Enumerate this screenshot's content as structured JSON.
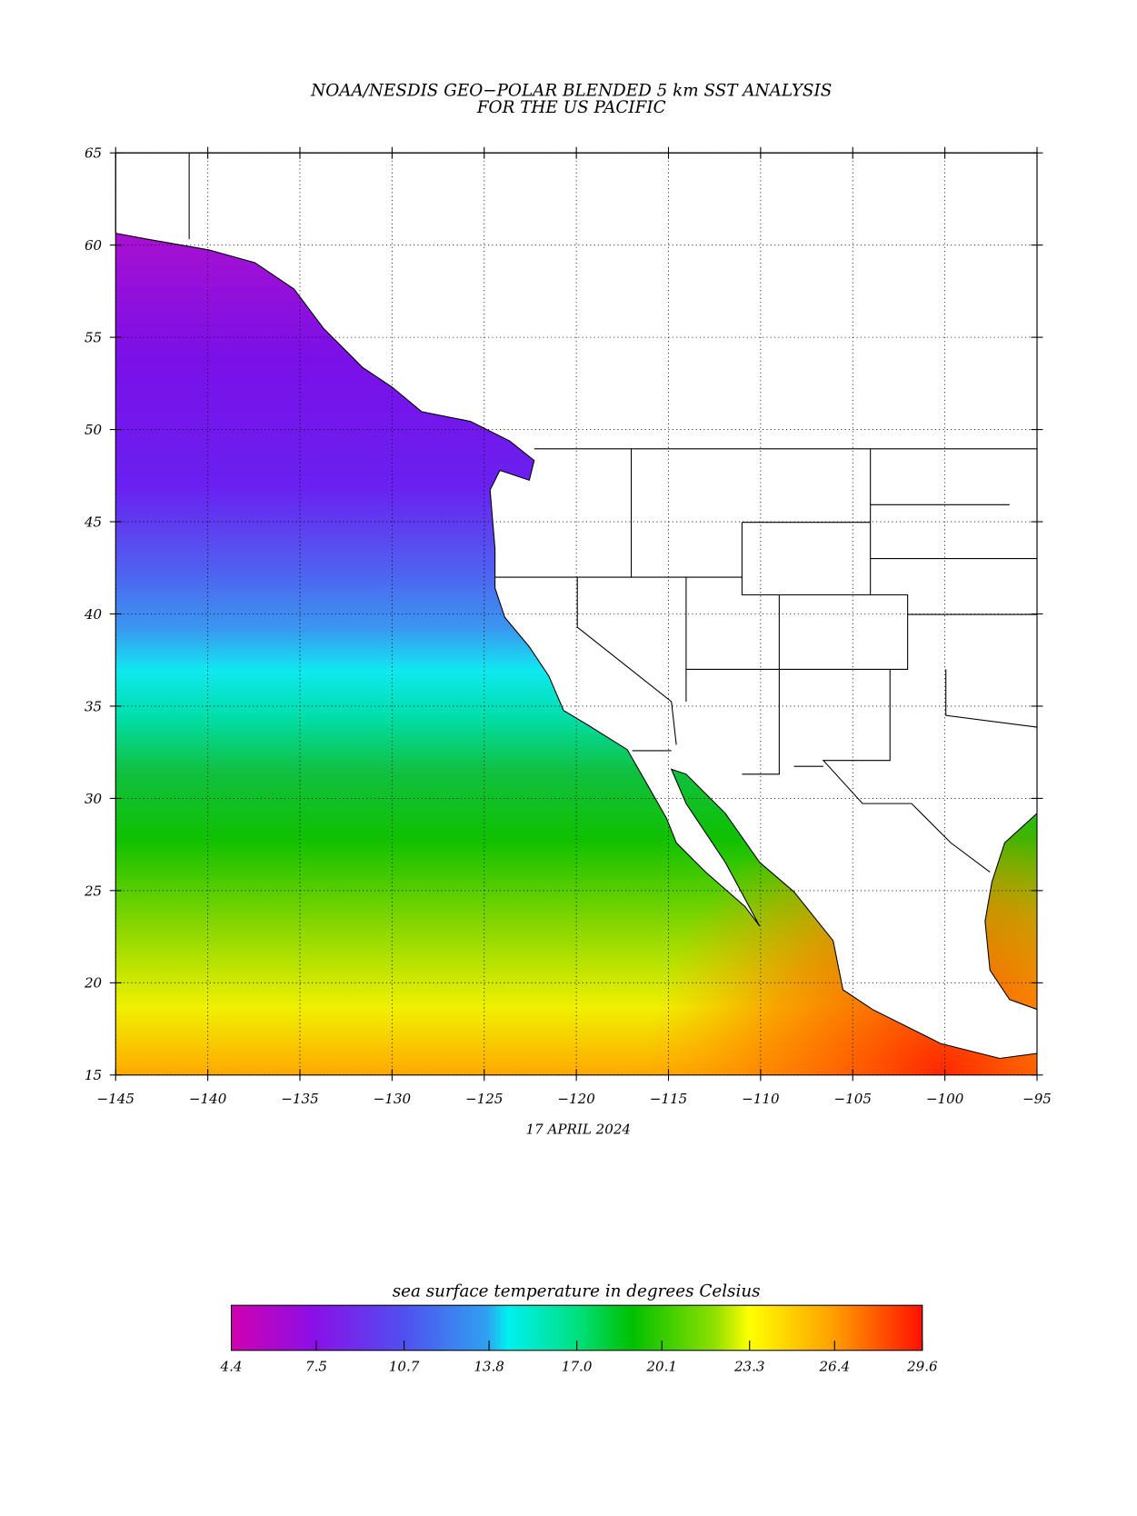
{
  "chart_data": {
    "type": "map",
    "title": "NOAA/NESDIS GEO−POLAR BLENDED 5 km SST ANALYSIS",
    "subtitle": "FOR THE US PACIFIC",
    "x_label": "17 APRIL 2024",
    "xlim": [
      -145,
      -95
    ],
    "ylim": [
      15,
      65
    ],
    "xticks": [
      {
        "value": -145,
        "label": "−145"
      },
      {
        "value": -140,
        "label": "−140"
      },
      {
        "value": -135,
        "label": "−135"
      },
      {
        "value": -130,
        "label": "−130"
      },
      {
        "value": -125,
        "label": "−125"
      },
      {
        "value": -120,
        "label": "−120"
      },
      {
        "value": -115,
        "label": "−115"
      },
      {
        "value": -110,
        "label": "−110"
      },
      {
        "value": -105,
        "label": "−105"
      },
      {
        "value": -100,
        "label": "−100"
      },
      {
        "value": -95,
        "label": "−95"
      }
    ],
    "yticks": [
      15,
      20,
      25,
      30,
      35,
      40,
      45,
      50,
      55,
      60,
      65
    ],
    "grid": true,
    "colorbar": {
      "title": "sea surface temperature in degrees Celsius",
      "lim": [
        4.4,
        29.6
      ],
      "ticks": [
        4.4,
        7.5,
        10.7,
        13.8,
        {
          "value": 17,
          "label": "17.0"
        },
        20.1,
        23.3,
        26.4,
        29.6
      ]
    }
  }
}
